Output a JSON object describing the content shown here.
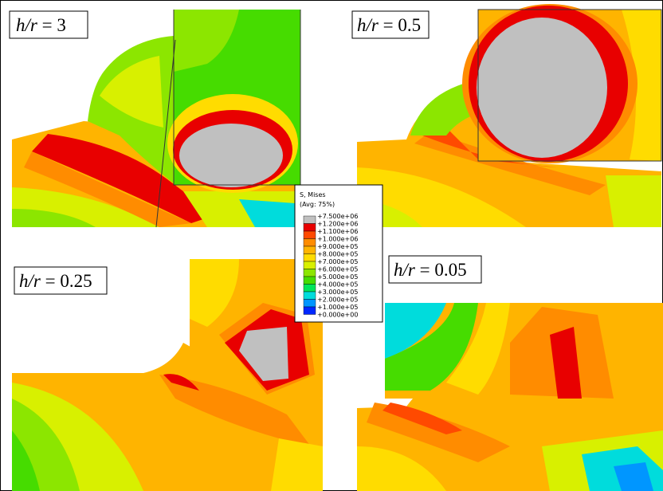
{
  "panels": [
    {
      "label": {
        "italic": "h/r",
        "text": " = 3"
      }
    },
    {
      "label": {
        "italic": "h/r",
        "text": " = 0.5"
      }
    },
    {
      "label": {
        "italic": "h/r",
        "text": " = 0.25"
      }
    },
    {
      "label": {
        "italic": "h/r",
        "text": " = 0.05"
      }
    }
  ],
  "legend": {
    "title": "S, Mises",
    "subtitle": "(Avg: 75%)",
    "levels": [
      "+7.500e+06",
      "+1.200e+06",
      "+1.100e+06",
      "+1.000e+06",
      "+9.000e+05",
      "+8.000e+05",
      "+7.000e+05",
      "+6.000e+05",
      "+5.000e+05",
      "+4.000e+05",
      "+3.000e+05",
      "+2.000e+05",
      "+1.000e+05",
      "+0.000e+00"
    ],
    "colors": [
      "#c0c0c0",
      "#e80000",
      "#ff4a00",
      "#ff8c00",
      "#ffb400",
      "#ffdc00",
      "#d8f000",
      "#8ce600",
      "#46dc00",
      "#00e65a",
      "#00dcdc",
      "#0096ff",
      "#0028ff"
    ]
  }
}
